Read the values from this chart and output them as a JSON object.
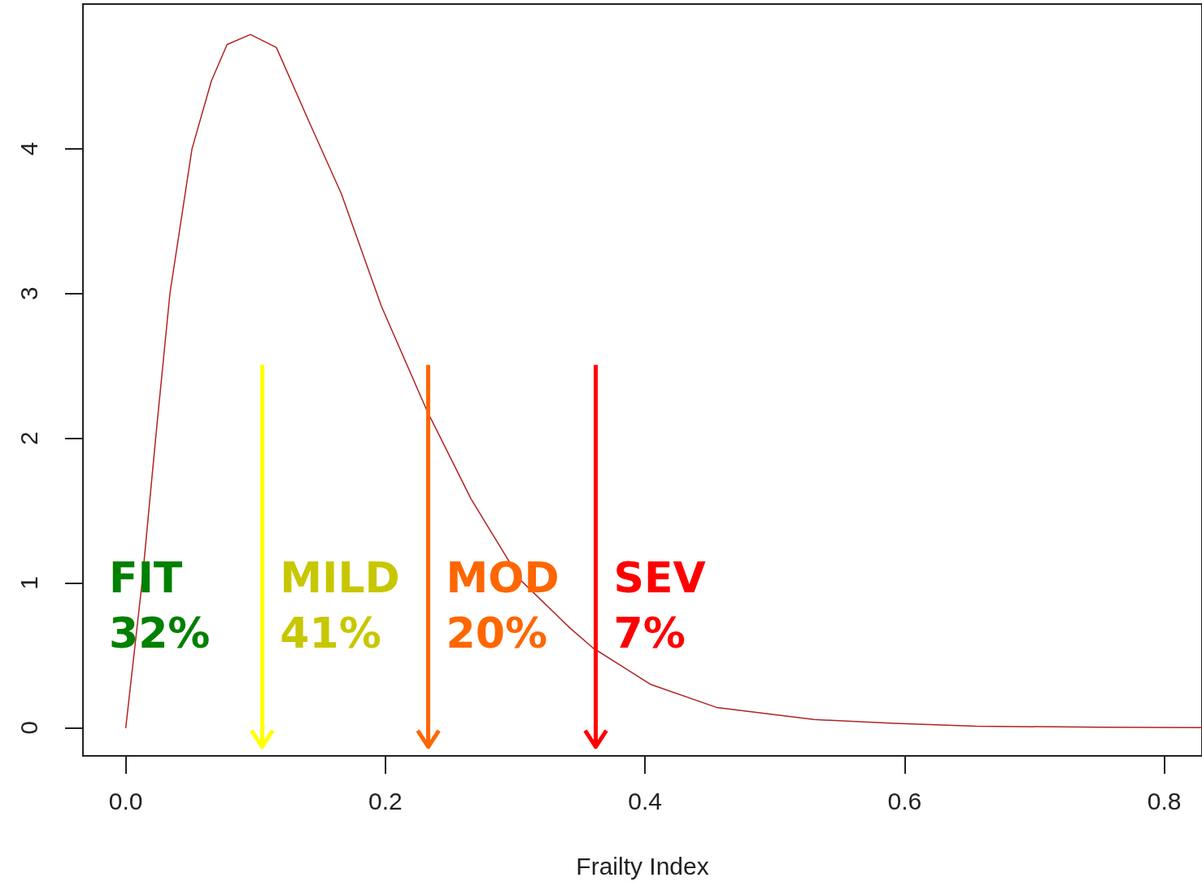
{
  "chart_data": {
    "type": "line",
    "xlabel": "Frailty Index",
    "x": [
      0,
      0.0125,
      0.023,
      0.034,
      0.051,
      0.066,
      0.078,
      0.096,
      0.116,
      0.141,
      0.166,
      0.197,
      0.232,
      0.266,
      0.304,
      0.342,
      0.36,
      0.404,
      0.455,
      0.53,
      0.592,
      0.655,
      0.75,
      0.829
    ],
    "series": [
      {
        "color": "#b22222",
        "values": [
          0,
          1.0,
          2.0,
          3.0,
          4.0,
          4.47,
          4.72,
          4.79,
          4.7,
          4.19,
          3.69,
          2.91,
          2.19,
          1.58,
          1.02,
          0.69,
          0.55,
          0.3,
          0.14,
          0.056,
          0.03,
          0.01,
          0.003,
          0
        ]
      }
    ],
    "xlim": [
      -0.033,
      0.829
    ],
    "ylim": [
      -0.195,
      5.0
    ],
    "xticks": [
      {
        "value": 0,
        "label": "0.0"
      },
      0.2,
      0.4,
      0.6,
      0.8
    ],
    "yticks": [
      0,
      1,
      2,
      3,
      4
    ],
    "grid": false,
    "marker": "none",
    "line_style": "solid",
    "ref_lines": [
      {
        "axis": "x",
        "value": 0.105,
        "color": "#ffff00",
        "label": "MILD\n41%"
      },
      {
        "axis": "x",
        "value": 0.233,
        "color": "#ff6600",
        "label": "MOD\n20%"
      },
      {
        "axis": "x",
        "value": 0.362,
        "color": "#ff0000",
        "label": "SEV\n7%"
      }
    ],
    "annotations": [
      "FIT\n32%"
    ]
  }
}
